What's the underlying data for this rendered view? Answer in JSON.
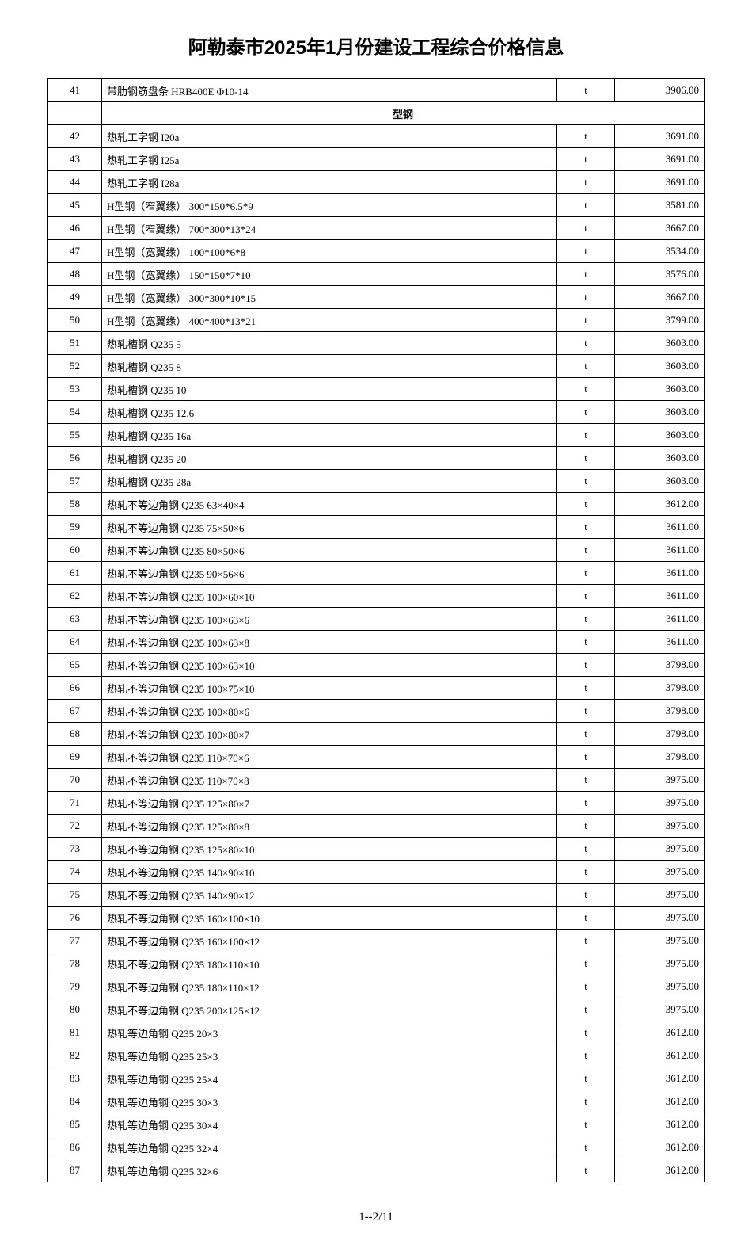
{
  "title": "阿勒泰市2025年1月份建设工程综合价格信息",
  "footer": "1--2/11",
  "section_header": "型钢",
  "columns": {
    "num_width": 55,
    "unit_width": 60,
    "price_width": 100
  },
  "colors": {
    "text": "#000000",
    "border": "#000000",
    "background": "#ffffff"
  },
  "typography": {
    "title_fontsize": 24,
    "body_fontsize": 13,
    "footer_fontsize": 15
  },
  "pre_section_rows": [
    {
      "num": "41",
      "name": "带肋钢筋盘条 HRB400E Φ10-14",
      "unit": "t",
      "price": "3906.00"
    }
  ],
  "rows": [
    {
      "num": "42",
      "name": "热轧工字钢 I20a",
      "unit": "t",
      "price": "3691.00"
    },
    {
      "num": "43",
      "name": "热轧工字钢 I25a",
      "unit": "t",
      "price": "3691.00"
    },
    {
      "num": "44",
      "name": "热轧工字钢 I28a",
      "unit": "t",
      "price": "3691.00"
    },
    {
      "num": "45",
      "name": "H型钢（窄翼缘） 300*150*6.5*9",
      "unit": "t",
      "price": "3581.00"
    },
    {
      "num": "46",
      "name": "H型钢（窄翼缘） 700*300*13*24",
      "unit": "t",
      "price": "3667.00"
    },
    {
      "num": "47",
      "name": "H型钢（宽翼缘） 100*100*6*8",
      "unit": "t",
      "price": "3534.00"
    },
    {
      "num": "48",
      "name": "H型钢（宽翼缘） 150*150*7*10",
      "unit": "t",
      "price": "3576.00"
    },
    {
      "num": "49",
      "name": "H型钢（宽翼缘） 300*300*10*15",
      "unit": "t",
      "price": "3667.00"
    },
    {
      "num": "50",
      "name": "H型钢（宽翼缘） 400*400*13*21",
      "unit": "t",
      "price": "3799.00"
    },
    {
      "num": "51",
      "name": "热轧槽钢 Q235 5",
      "unit": "t",
      "price": "3603.00"
    },
    {
      "num": "52",
      "name": "热轧槽钢 Q235 8",
      "unit": "t",
      "price": "3603.00"
    },
    {
      "num": "53",
      "name": "热轧槽钢 Q235 10",
      "unit": "t",
      "price": "3603.00"
    },
    {
      "num": "54",
      "name": "热轧槽钢 Q235 12.6",
      "unit": "t",
      "price": "3603.00"
    },
    {
      "num": "55",
      "name": "热轧槽钢 Q235 16a",
      "unit": "t",
      "price": "3603.00"
    },
    {
      "num": "56",
      "name": "热轧槽钢 Q235 20",
      "unit": "t",
      "price": "3603.00"
    },
    {
      "num": "57",
      "name": "热轧槽钢 Q235 28a",
      "unit": "t",
      "price": "3603.00"
    },
    {
      "num": "58",
      "name": "热轧不等边角钢 Q235 63×40×4",
      "unit": "t",
      "price": "3612.00"
    },
    {
      "num": "59",
      "name": "热轧不等边角钢 Q235 75×50×6",
      "unit": "t",
      "price": "3611.00"
    },
    {
      "num": "60",
      "name": "热轧不等边角钢 Q235 80×50×6",
      "unit": "t",
      "price": "3611.00"
    },
    {
      "num": "61",
      "name": "热轧不等边角钢 Q235 90×56×6",
      "unit": "t",
      "price": "3611.00"
    },
    {
      "num": "62",
      "name": "热轧不等边角钢 Q235 100×60×10",
      "unit": "t",
      "price": "3611.00"
    },
    {
      "num": "63",
      "name": "热轧不等边角钢 Q235 100×63×6",
      "unit": "t",
      "price": "3611.00"
    },
    {
      "num": "64",
      "name": "热轧不等边角钢 Q235 100×63×8",
      "unit": "t",
      "price": "3611.00"
    },
    {
      "num": "65",
      "name": "热轧不等边角钢 Q235 100×63×10",
      "unit": "t",
      "price": "3798.00"
    },
    {
      "num": "66",
      "name": "热轧不等边角钢 Q235 100×75×10",
      "unit": "t",
      "price": "3798.00"
    },
    {
      "num": "67",
      "name": "热轧不等边角钢 Q235 100×80×6",
      "unit": "t",
      "price": "3798.00"
    },
    {
      "num": "68",
      "name": "热轧不等边角钢 Q235 100×80×7",
      "unit": "t",
      "price": "3798.00"
    },
    {
      "num": "69",
      "name": "热轧不等边角钢 Q235 110×70×6",
      "unit": "t",
      "price": "3798.00"
    },
    {
      "num": "70",
      "name": "热轧不等边角钢 Q235 110×70×8",
      "unit": "t",
      "price": "3975.00"
    },
    {
      "num": "71",
      "name": "热轧不等边角钢 Q235 125×80×7",
      "unit": "t",
      "price": "3975.00"
    },
    {
      "num": "72",
      "name": "热轧不等边角钢 Q235 125×80×8",
      "unit": "t",
      "price": "3975.00"
    },
    {
      "num": "73",
      "name": "热轧不等边角钢 Q235 125×80×10",
      "unit": "t",
      "price": "3975.00"
    },
    {
      "num": "74",
      "name": "热轧不等边角钢 Q235 140×90×10",
      "unit": "t",
      "price": "3975.00"
    },
    {
      "num": "75",
      "name": "热轧不等边角钢 Q235 140×90×12",
      "unit": "t",
      "price": "3975.00"
    },
    {
      "num": "76",
      "name": "热轧不等边角钢 Q235 160×100×10",
      "unit": "t",
      "price": "3975.00"
    },
    {
      "num": "77",
      "name": "热轧不等边角钢 Q235 160×100×12",
      "unit": "t",
      "price": "3975.00"
    },
    {
      "num": "78",
      "name": "热轧不等边角钢 Q235 180×110×10",
      "unit": "t",
      "price": "3975.00"
    },
    {
      "num": "79",
      "name": "热轧不等边角钢 Q235 180×110×12",
      "unit": "t",
      "price": "3975.00"
    },
    {
      "num": "80",
      "name": "热轧不等边角钢 Q235 200×125×12",
      "unit": "t",
      "price": "3975.00"
    },
    {
      "num": "81",
      "name": "热轧等边角钢   Q235 20×3",
      "unit": "t",
      "price": "3612.00"
    },
    {
      "num": "82",
      "name": "热轧等边角钢   Q235 25×3",
      "unit": "t",
      "price": "3612.00"
    },
    {
      "num": "83",
      "name": "热轧等边角钢   Q235 25×4",
      "unit": "t",
      "price": "3612.00"
    },
    {
      "num": "84",
      "name": "热轧等边角钢   Q235 30×3",
      "unit": "t",
      "price": "3612.00"
    },
    {
      "num": "85",
      "name": "热轧等边角钢   Q235 30×4",
      "unit": "t",
      "price": "3612.00"
    },
    {
      "num": "86",
      "name": "热轧等边角钢   Q235 32×4",
      "unit": "t",
      "price": "3612.00"
    },
    {
      "num": "87",
      "name": "热轧等边角钢   Q235 32×6",
      "unit": "t",
      "price": "3612.00"
    }
  ]
}
